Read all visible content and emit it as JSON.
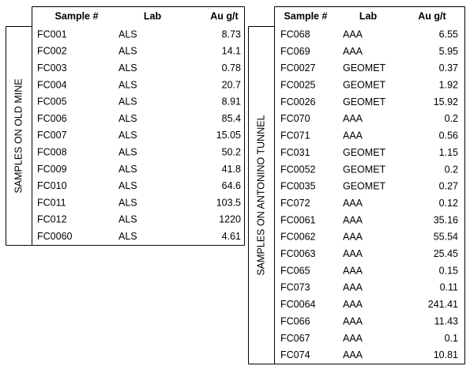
{
  "tables": [
    {
      "group_label": "SAMPLES ON OLD MINE",
      "header": [
        "Sample #",
        "Lab",
        "Au g/t"
      ],
      "rows": [
        [
          "FC001",
          "ALS",
          "8.73"
        ],
        [
          "FC002",
          "ALS",
          "14.1"
        ],
        [
          "FC003",
          "ALS",
          "0.78"
        ],
        [
          "FC004",
          "ALS",
          "20.7"
        ],
        [
          "FC005",
          "ALS",
          "8.91"
        ],
        [
          "FC006",
          "ALS",
          "85.4"
        ],
        [
          "FC007",
          "ALS",
          "15.05"
        ],
        [
          "FC008",
          "ALS",
          "50.2"
        ],
        [
          "FC009",
          "ALS",
          "41.8"
        ],
        [
          "FC010",
          "ALS",
          "64.6"
        ],
        [
          "FC011",
          "ALS",
          "103.5"
        ],
        [
          "FC012",
          "ALS",
          "1220"
        ],
        [
          "FC0060",
          "ALS",
          "4.61"
        ]
      ]
    },
    {
      "group_label": "SAMPLES ON ANTONINO TUNNEL",
      "header": [
        "Sample #",
        "Lab",
        "Au g/t"
      ],
      "rows": [
        [
          "FC068",
          "AAA",
          "6.55"
        ],
        [
          "FC069",
          "AAA",
          "5.95"
        ],
        [
          "FC0027",
          "GEOMET",
          "0.37"
        ],
        [
          "FC0025",
          "GEOMET",
          "1.92"
        ],
        [
          "FC0026",
          "GEOMET",
          "15.92"
        ],
        [
          "FC070",
          "AAA",
          "0.2"
        ],
        [
          "FC071",
          "AAA",
          "0.56"
        ],
        [
          "FC031",
          "GEOMET",
          "1.15"
        ],
        [
          "FC0052",
          "GEOMET",
          "0.2"
        ],
        [
          "FC0035",
          "GEOMET",
          "0.27"
        ],
        [
          "FC072",
          "AAA",
          "0.12"
        ],
        [
          "FC0061",
          "AAA",
          "35.16"
        ],
        [
          "FC0062",
          "AAA",
          "55.54"
        ],
        [
          "FC0063",
          "AAA",
          "25.45"
        ],
        [
          "FC065",
          "AAA",
          "0.15"
        ],
        [
          "FC073",
          "AAA",
          "0.11"
        ],
        [
          "FC0064",
          "AAA",
          "241.41"
        ],
        [
          "FC066",
          "AAA",
          "11.43"
        ],
        [
          "FC067",
          "AAA",
          "0.1"
        ],
        [
          "FC074",
          "AAA",
          "10.81"
        ]
      ]
    }
  ]
}
